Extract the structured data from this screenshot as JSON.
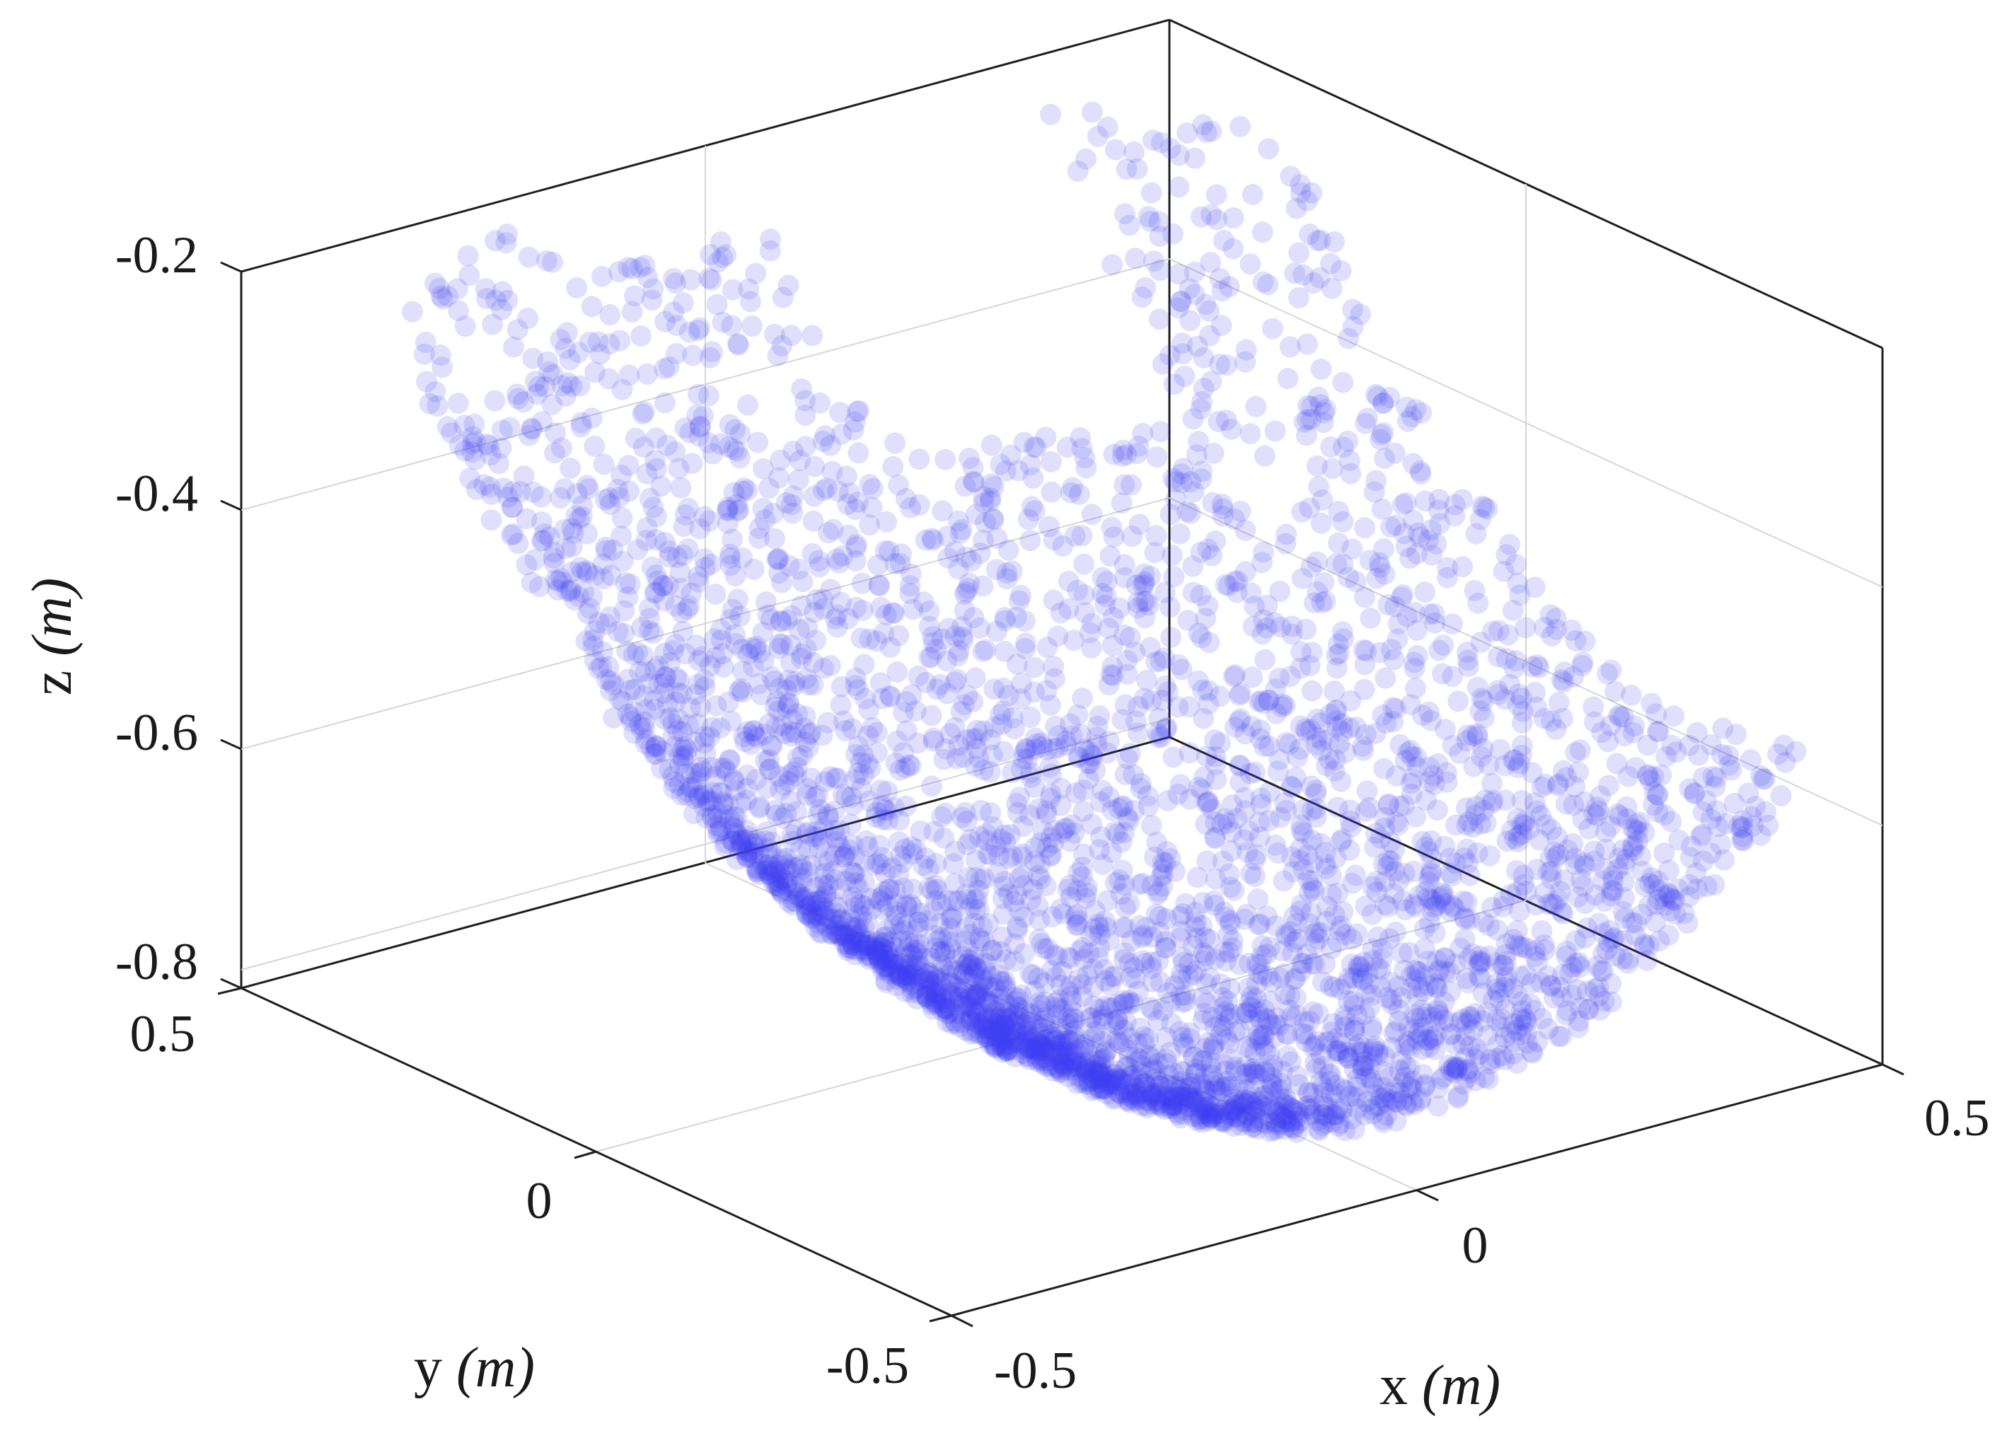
{
  "chart_data": {
    "type": "scatter",
    "subtype": "3d_point_cloud",
    "title": "",
    "xlabel": "x (m)",
    "ylabel": "y (m)",
    "zlabel": "z (m)",
    "xlim": [
      -0.5,
      0.5
    ],
    "ylim": [
      -0.5,
      0.5
    ],
    "zlim": [
      -0.8,
      -0.2
    ],
    "x_ticks": [
      "-0.5",
      "0",
      "0.5"
    ],
    "y_ticks": [
      "-0.5",
      "0",
      "0.5"
    ],
    "z_ticks": [
      "-0.2",
      "-0.4",
      "-0.6",
      "-0.8"
    ],
    "grid": true,
    "legend": null,
    "series": [
      {
        "name": "point cloud",
        "marker": "filled circle",
        "color": "#3c3cf0",
        "alpha": 0.16,
        "shape": "bowl-shaped (paraboloid) surface, minimum z≈-0.75 near x≈0, y≈-0.3; rim rising to z≈-0.22 at y≈0.4 and z≈-0.35 at x≈0.45",
        "approx_point_count": 4000
      }
    ]
  },
  "labels": {
    "x_axis": {
      "name": "x ",
      "unit": "(m)"
    },
    "y_axis": {
      "name": "y ",
      "unit": "(m)"
    },
    "z_axis": {
      "name": "z ",
      "unit": "(m)"
    },
    "x_ticks": [
      "-0.5",
      "0",
      "0.5"
    ],
    "y_ticks": [
      "0.5",
      "0",
      "-0.5"
    ],
    "z_ticks": [
      "-0.2",
      "-0.4",
      "-0.6",
      "-0.8"
    ]
  },
  "render": {
    "point_color": "#3c3cf0",
    "point_alpha": 0.16,
    "point_radius": 15,
    "seed": 1337,
    "count": 4200
  }
}
